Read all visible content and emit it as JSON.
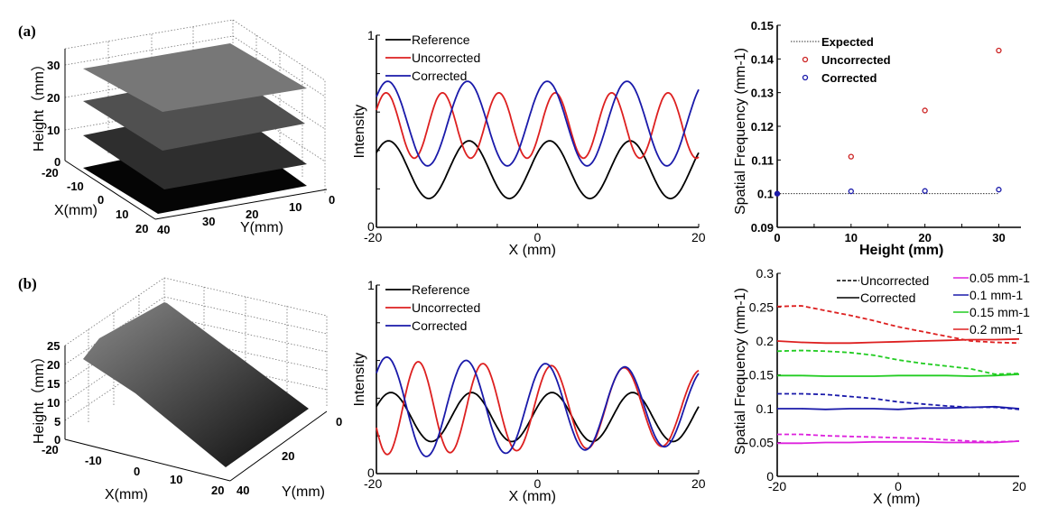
{
  "panels": {
    "a": {
      "tag": "(a)"
    },
    "b": {
      "tag": "(b)"
    }
  },
  "chart_data": [
    {
      "id": "a-surface",
      "type": "surface3d",
      "title": "",
      "xlabel": "X(mm)",
      "ylabel": "Y(mm)",
      "zlabel": "Height（mm）",
      "xticks": [
        "-20",
        "-10",
        "0",
        "10",
        "20"
      ],
      "yticks": [
        "40",
        "30",
        "20",
        "10",
        "0"
      ],
      "zticks": [
        "0",
        "10",
        "20",
        "30"
      ],
      "surfaces": [
        {
          "name": "plane-0mm",
          "height": 0
        },
        {
          "name": "plane-10mm",
          "height": 10
        },
        {
          "name": "plane-20mm",
          "height": 20
        },
        {
          "name": "plane-30mm",
          "height": 30
        }
      ]
    },
    {
      "id": "a-intensity",
      "type": "line",
      "xlabel": "X (mm)",
      "ylabel": "Intensity",
      "xlim": [
        -20,
        20
      ],
      "ylim": [
        0,
        1
      ],
      "xticks": [
        "-20",
        "0",
        "20"
      ],
      "yticks": [
        "0",
        "1"
      ],
      "legend": "top-left",
      "series": [
        {
          "name": "Reference",
          "color": "#000000",
          "period": 10,
          "phase_peak_x": -18.5,
          "center": 0.3,
          "amplitude": 0.15
        },
        {
          "name": "Uncorrected",
          "color": "#dd2020",
          "period": 7.0,
          "phase_peak_x": -18.8,
          "center": 0.53,
          "amplitude": 0.17
        },
        {
          "name": "Corrected",
          "color": "#1a1aaa",
          "period": 9.9,
          "phase_peak_x": -18.6,
          "center": 0.54,
          "amplitude": 0.22
        }
      ]
    },
    {
      "id": "a-frequency",
      "type": "scatter",
      "xlabel": "Height (mm)",
      "ylabel": "Spatial Frequency (mm-1)",
      "xlim": [
        0,
        33
      ],
      "ylim": [
        0.09,
        0.15
      ],
      "xticks": [
        "0",
        "10",
        "20",
        "30"
      ],
      "yticks": [
        "0.09",
        "0.1",
        "0.11",
        "0.12",
        "0.13",
        "0.14",
        "0.15"
      ],
      "legend": "top-left",
      "series": [
        {
          "name": "Expected",
          "style": "dotted",
          "color": "#333333",
          "x": [
            0,
            30
          ],
          "y": [
            0.1,
            0.1
          ]
        },
        {
          "name": "Uncorrected",
          "style": "marker",
          "color": "#cc2222",
          "x": [
            0,
            10,
            20,
            30
          ],
          "y": [
            0.1,
            0.111,
            0.1247,
            0.1425
          ]
        },
        {
          "name": "Corrected",
          "style": "marker",
          "color": "#1a1aaa",
          "x": [
            0,
            10,
            20,
            30
          ],
          "y": [
            0.1,
            0.1007,
            0.1008,
            0.1012
          ]
        }
      ]
    },
    {
      "id": "b-surface",
      "type": "surface3d",
      "xlabel": "X(mm)",
      "ylabel": "Y(mm)",
      "zlabel": "Height（mm）",
      "xticks": [
        "-20",
        "-10",
        "0",
        "10",
        "20"
      ],
      "yticks": [
        "40",
        "20",
        "0"
      ],
      "zticks": [
        "0",
        "5",
        "10",
        "15",
        "20",
        "25"
      ],
      "surfaces": [
        {
          "name": "inclined-plane",
          "height_range": [
            0,
            25
          ]
        }
      ]
    },
    {
      "id": "b-intensity",
      "type": "line",
      "xlabel": "X (mm)",
      "ylabel": "Intensity",
      "xlim": [
        -20,
        20
      ],
      "ylim": [
        0,
        1
      ],
      "xticks": [
        "-20",
        "0",
        "20"
      ],
      "yticks": [
        "0",
        "1"
      ],
      "legend": "top-left",
      "series": [
        {
          "name": "Reference",
          "color": "#000000",
          "period": 10,
          "phase_peak_x": -18.2,
          "center": 0.3,
          "amplitude": 0.13
        },
        {
          "name": "Uncorrected",
          "color": "#dd2020",
          "period_start": 7.5,
          "period_end": 9.8,
          "phase_peak_x": -14.8,
          "center": 0.35,
          "amplitude_start": 0.25,
          "amplitude_end": 0.2
        },
        {
          "name": "Corrected",
          "color": "#1a1aaa",
          "period": 9.85,
          "phase_peak_x": -18.7,
          "center": 0.35,
          "amplitude_start": 0.27,
          "amplitude_end": 0.2
        }
      ]
    },
    {
      "id": "b-frequency",
      "type": "line",
      "xlabel": "X (mm)",
      "ylabel": "Spatial Frequency (mm-1)",
      "xlim": [
        -20,
        20
      ],
      "ylim": [
        0,
        0.3
      ],
      "xticks": [
        "-20",
        "0",
        "20"
      ],
      "yticks": [
        "0",
        "0.05",
        "0.1",
        "0.15",
        "0.2",
        "0.25",
        "0.3"
      ],
      "legend_style": [
        "Uncorrected",
        "Corrected"
      ],
      "legend_style_dash": [
        "dashed",
        "solid"
      ],
      "legend_freq": [
        "0.05 mm-1",
        "0.1 mm-1",
        "0.15 mm-1",
        "0.2 mm-1"
      ],
      "x": [
        -20,
        -16,
        -12,
        -8,
        -4,
        0,
        4,
        8,
        12,
        16,
        20
      ],
      "series": [
        {
          "name": "0.05 uncorrected",
          "color": "#dd22dd",
          "dash": true,
          "y": [
            0.062,
            0.062,
            0.06,
            0.059,
            0.058,
            0.057,
            0.056,
            0.054,
            0.052,
            0.051,
            0.052
          ]
        },
        {
          "name": "0.05 corrected",
          "color": "#dd22dd",
          "dash": false,
          "y": [
            0.049,
            0.049,
            0.05,
            0.05,
            0.051,
            0.051,
            0.051,
            0.05,
            0.05,
            0.05,
            0.052
          ]
        },
        {
          "name": "0.1 uncorrected",
          "color": "#1a1aaa",
          "dash": true,
          "y": [
            0.122,
            0.122,
            0.121,
            0.118,
            0.115,
            0.11,
            0.107,
            0.104,
            0.102,
            0.102,
            0.099
          ]
        },
        {
          "name": "0.1 corrected",
          "color": "#1a1aaa",
          "dash": false,
          "y": [
            0.1,
            0.1,
            0.099,
            0.1,
            0.1,
            0.099,
            0.101,
            0.101,
            0.102,
            0.103,
            0.1
          ]
        },
        {
          "name": "0.15 uncorrected",
          "color": "#22cc22",
          "dash": true,
          "y": [
            0.185,
            0.186,
            0.185,
            0.183,
            0.179,
            0.172,
            0.167,
            0.163,
            0.159,
            0.151,
            0.152
          ]
        },
        {
          "name": "0.15 corrected",
          "color": "#22cc22",
          "dash": false,
          "y": [
            0.149,
            0.149,
            0.148,
            0.148,
            0.148,
            0.149,
            0.149,
            0.149,
            0.148,
            0.149,
            0.151
          ]
        },
        {
          "name": "0.2 uncorrected",
          "color": "#dd2020",
          "dash": true,
          "y": [
            0.251,
            0.252,
            0.245,
            0.238,
            0.23,
            0.221,
            0.214,
            0.207,
            0.2,
            0.198,
            0.197
          ]
        },
        {
          "name": "0.2 corrected",
          "color": "#dd2020",
          "dash": false,
          "y": [
            0.2,
            0.198,
            0.197,
            0.197,
            0.198,
            0.199,
            0.2,
            0.201,
            0.202,
            0.202,
            0.203
          ]
        }
      ]
    }
  ]
}
